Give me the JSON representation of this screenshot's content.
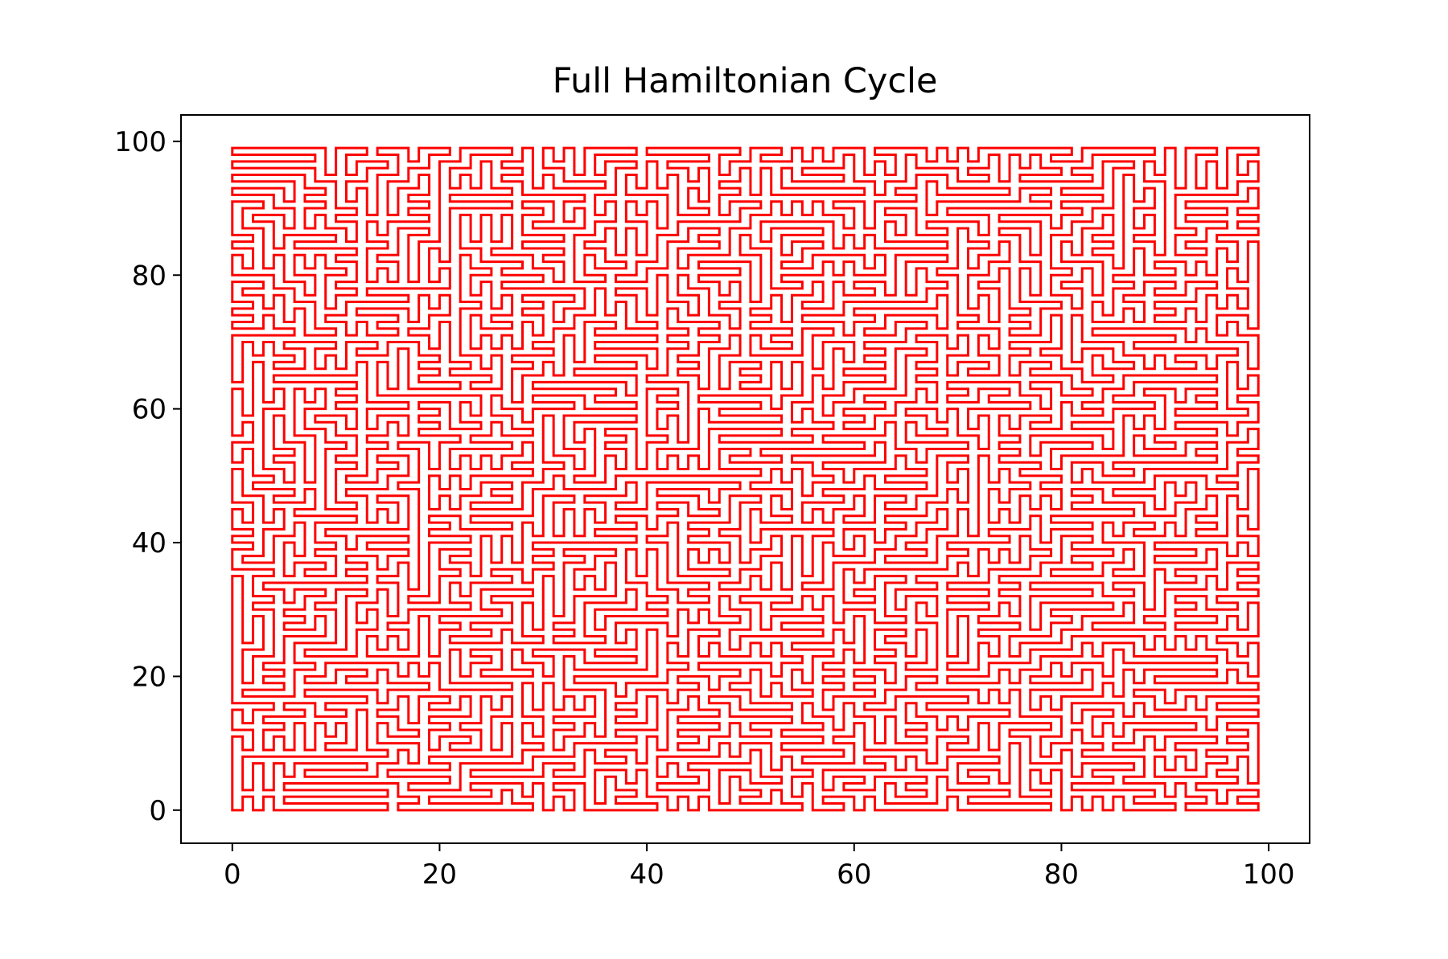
{
  "chart_data": {
    "type": "line",
    "title": "Full Hamiltonian Cycle",
    "xlabel": "",
    "ylabel": "",
    "xlim": [
      -4.95,
      103.95
    ],
    "ylim": [
      -4.95,
      103.95
    ],
    "xticks": [
      0,
      20,
      40,
      60,
      80,
      100
    ],
    "yticks": [
      0,
      20,
      40,
      60,
      80,
      100
    ],
    "grid": false,
    "legend": "none",
    "series": [
      {
        "color": "#ff0000",
        "description_of_values": "closed Hamiltonian cycle visiting every integer grid point (x, y) with 0 <= x <= 99, 0 <= y <= 99",
        "grid_size": 100,
        "x_range": [
          0,
          99
        ],
        "y_range": [
          0,
          99
        ],
        "closed": true
      }
    ]
  }
}
